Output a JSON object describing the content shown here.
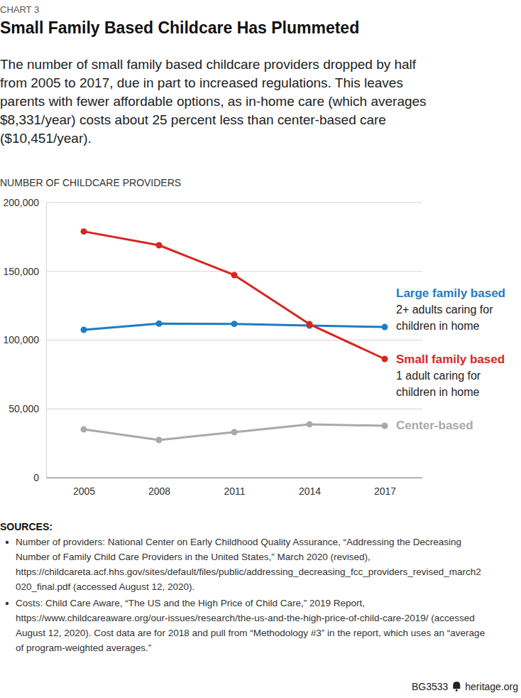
{
  "chart_data": {
    "type": "line",
    "chart_label": "CHART 3",
    "title": "Small Family Based Childcare Has Plummeted",
    "subtitle": [
      "The number of small family based childcare providers dropped by half",
      "from 2005 to 2017, due in part to increased regulations. This leaves",
      "parents with fewer affordable options, as in-home care (which averages",
      "$8,331/year) costs about 25 percent less than center-based care",
      "($10,451/year)."
    ],
    "y_label": "NUMBER OF CHILDCARE PROVIDERS",
    "categories": [
      "2005",
      "2008",
      "2011",
      "2014",
      "2017"
    ],
    "ylim": [
      0,
      200000
    ],
    "yticks": [
      0,
      {
        "value": 50000,
        "label": "50,000"
      },
      {
        "value": 100000,
        "label": "100,000"
      },
      {
        "value": 150000,
        "label": "150,000"
      },
      {
        "value": 200000,
        "label": "200,000"
      }
    ],
    "grid": true,
    "marker": "circle",
    "series": [
      {
        "name": "Large family based",
        "color": "#1f7cc1",
        "description": [
          "2+ adults caring for",
          "children in home"
        ],
        "values": [
          107500,
          112000,
          111800,
          110600,
          109500
        ]
      },
      {
        "name": "Small family based",
        "color": "#d6271f",
        "description": [
          "1 adult caring for",
          "children in home"
        ],
        "values": [
          179000,
          169000,
          147300,
          111600,
          86300
        ]
      },
      {
        "name": "Center-based",
        "color": "#a7a9ac",
        "values": [
          35100,
          27400,
          33100,
          38800,
          37700
        ]
      }
    ],
    "sources": {
      "heading": "SOURCES:",
      "items": [
        [
          "Number of providers: National Center on Early Childhood Quality Assurance, “Addressing the Decreasing",
          "Number of Family Child Care Providers in the United States,” March 2020 (revised),",
          "https://childcareta.acf.hhs.gov/sites/default/files/public/addressing_decreasing_fcc_providers_revised_march2",
          "020_final.pdf (accessed August 12, 2020)."
        ],
        [
          "Costs: Child Care Aware, “The US and the High Price of Child Care,” 2019 Report,",
          "https://www.childcareaware.org/our-issues/research/the-us-and-the-high-price-of-child-care-2019/ (accessed",
          "August 12, 2020). Cost data are for 2018 and pull from “Methodology #3” in the report, which uses an “average",
          "of program-weighted averages.”"
        ]
      ]
    },
    "footer": {
      "code": "BG3533",
      "site": "heritage.org"
    }
  }
}
